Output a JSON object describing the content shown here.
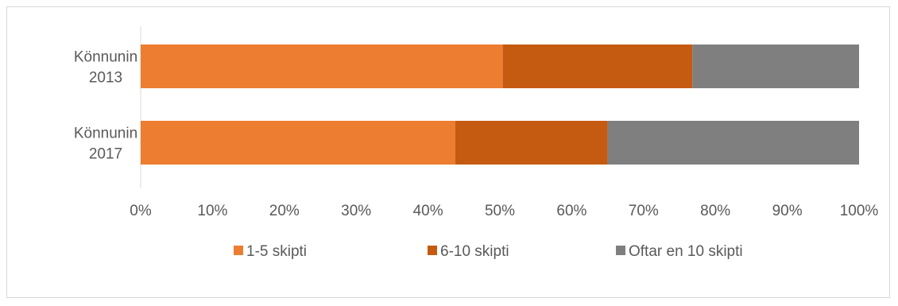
{
  "chart_data": {
    "type": "bar",
    "orientation": "horizontal",
    "stacked": "percent",
    "title": "",
    "xlabel": "",
    "ylabel": "",
    "categories": [
      [
        "Könnunin",
        "2013"
      ],
      [
        "Könnunin",
        "2017"
      ]
    ],
    "series": [
      {
        "name": "1-5 skipti",
        "color": "#ED7D31",
        "values": [
          50.4,
          43.8
        ]
      },
      {
        "name": "6-10 skipti",
        "color": "#C55A11",
        "values": [
          26.4,
          21.2
        ]
      },
      {
        "name": "Oftar en 10 skipti",
        "color": "#7F7F7F",
        "values": [
          23.2,
          35.0
        ]
      }
    ],
    "xlim": [
      0,
      100
    ],
    "xticks": [
      "0%",
      "10%",
      "20%",
      "30%",
      "40%",
      "50%",
      "60%",
      "70%",
      "80%",
      "90%",
      "100%"
    ],
    "grid": false,
    "legend": "bottom"
  }
}
